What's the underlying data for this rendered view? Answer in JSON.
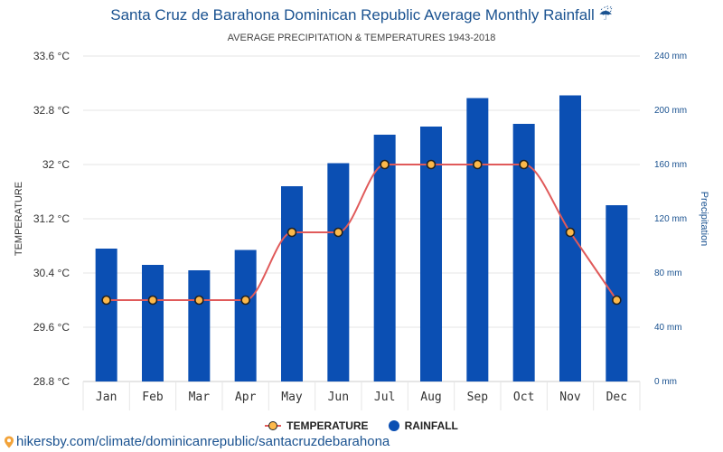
{
  "header": {
    "title": "Santa Cruz de Barahona Dominican Republic Average Monthly Rainfall ☔",
    "subtitle": "AVERAGE PRECIPITATION & TEMPERATURES 1943-2018"
  },
  "legend": {
    "temperature_label": "TEMPERATURE",
    "rainfall_label": "RAINFALL"
  },
  "footer": {
    "source_text": "hikersby.com/climate/dominicanrepublic/santacruzdebarahona"
  },
  "colors": {
    "bar": "#0b4fb3",
    "line": "#e05a5a",
    "marker_fill": "#fdb94a",
    "marker_stroke": "#222222",
    "title": "#1a5290",
    "right_axis": "#1a5290"
  },
  "chart_data": {
    "type": "bar",
    "categories": [
      "Jan",
      "Feb",
      "Mar",
      "Apr",
      "May",
      "Jun",
      "Jul",
      "Aug",
      "Sep",
      "Oct",
      "Nov",
      "Dec"
    ],
    "series": [
      {
        "name": "RAINFALL",
        "type": "bar",
        "axis": "right",
        "values": [
          98,
          86,
          82,
          97,
          144,
          161,
          182,
          188,
          209,
          190,
          211,
          130
        ]
      },
      {
        "name": "TEMPERATURE",
        "type": "line",
        "axis": "left",
        "values": [
          30.0,
          30.0,
          30.0,
          30.0,
          31.0,
          31.0,
          32.0,
          32.0,
          32.0,
          32.0,
          31.0,
          30.0
        ]
      }
    ],
    "ylabel_left": "TEMPERATURE",
    "ylabel_right": "Precipitation",
    "ylim_left": [
      28.8,
      33.6
    ],
    "ylim_right": [
      0,
      240
    ],
    "yticks_left": [
      "28.8 °C",
      "29.6 °C",
      "30.4 °C",
      "31.2 °C",
      "32 °C",
      "32.8 °C",
      "33.6 °C"
    ],
    "yticks_right": [
      "0 mm",
      "40 mm",
      "80 mm",
      "120 mm",
      "160 mm",
      "200 mm",
      "240 mm"
    ],
    "grid": true,
    "legend_position": "bottom-center"
  }
}
